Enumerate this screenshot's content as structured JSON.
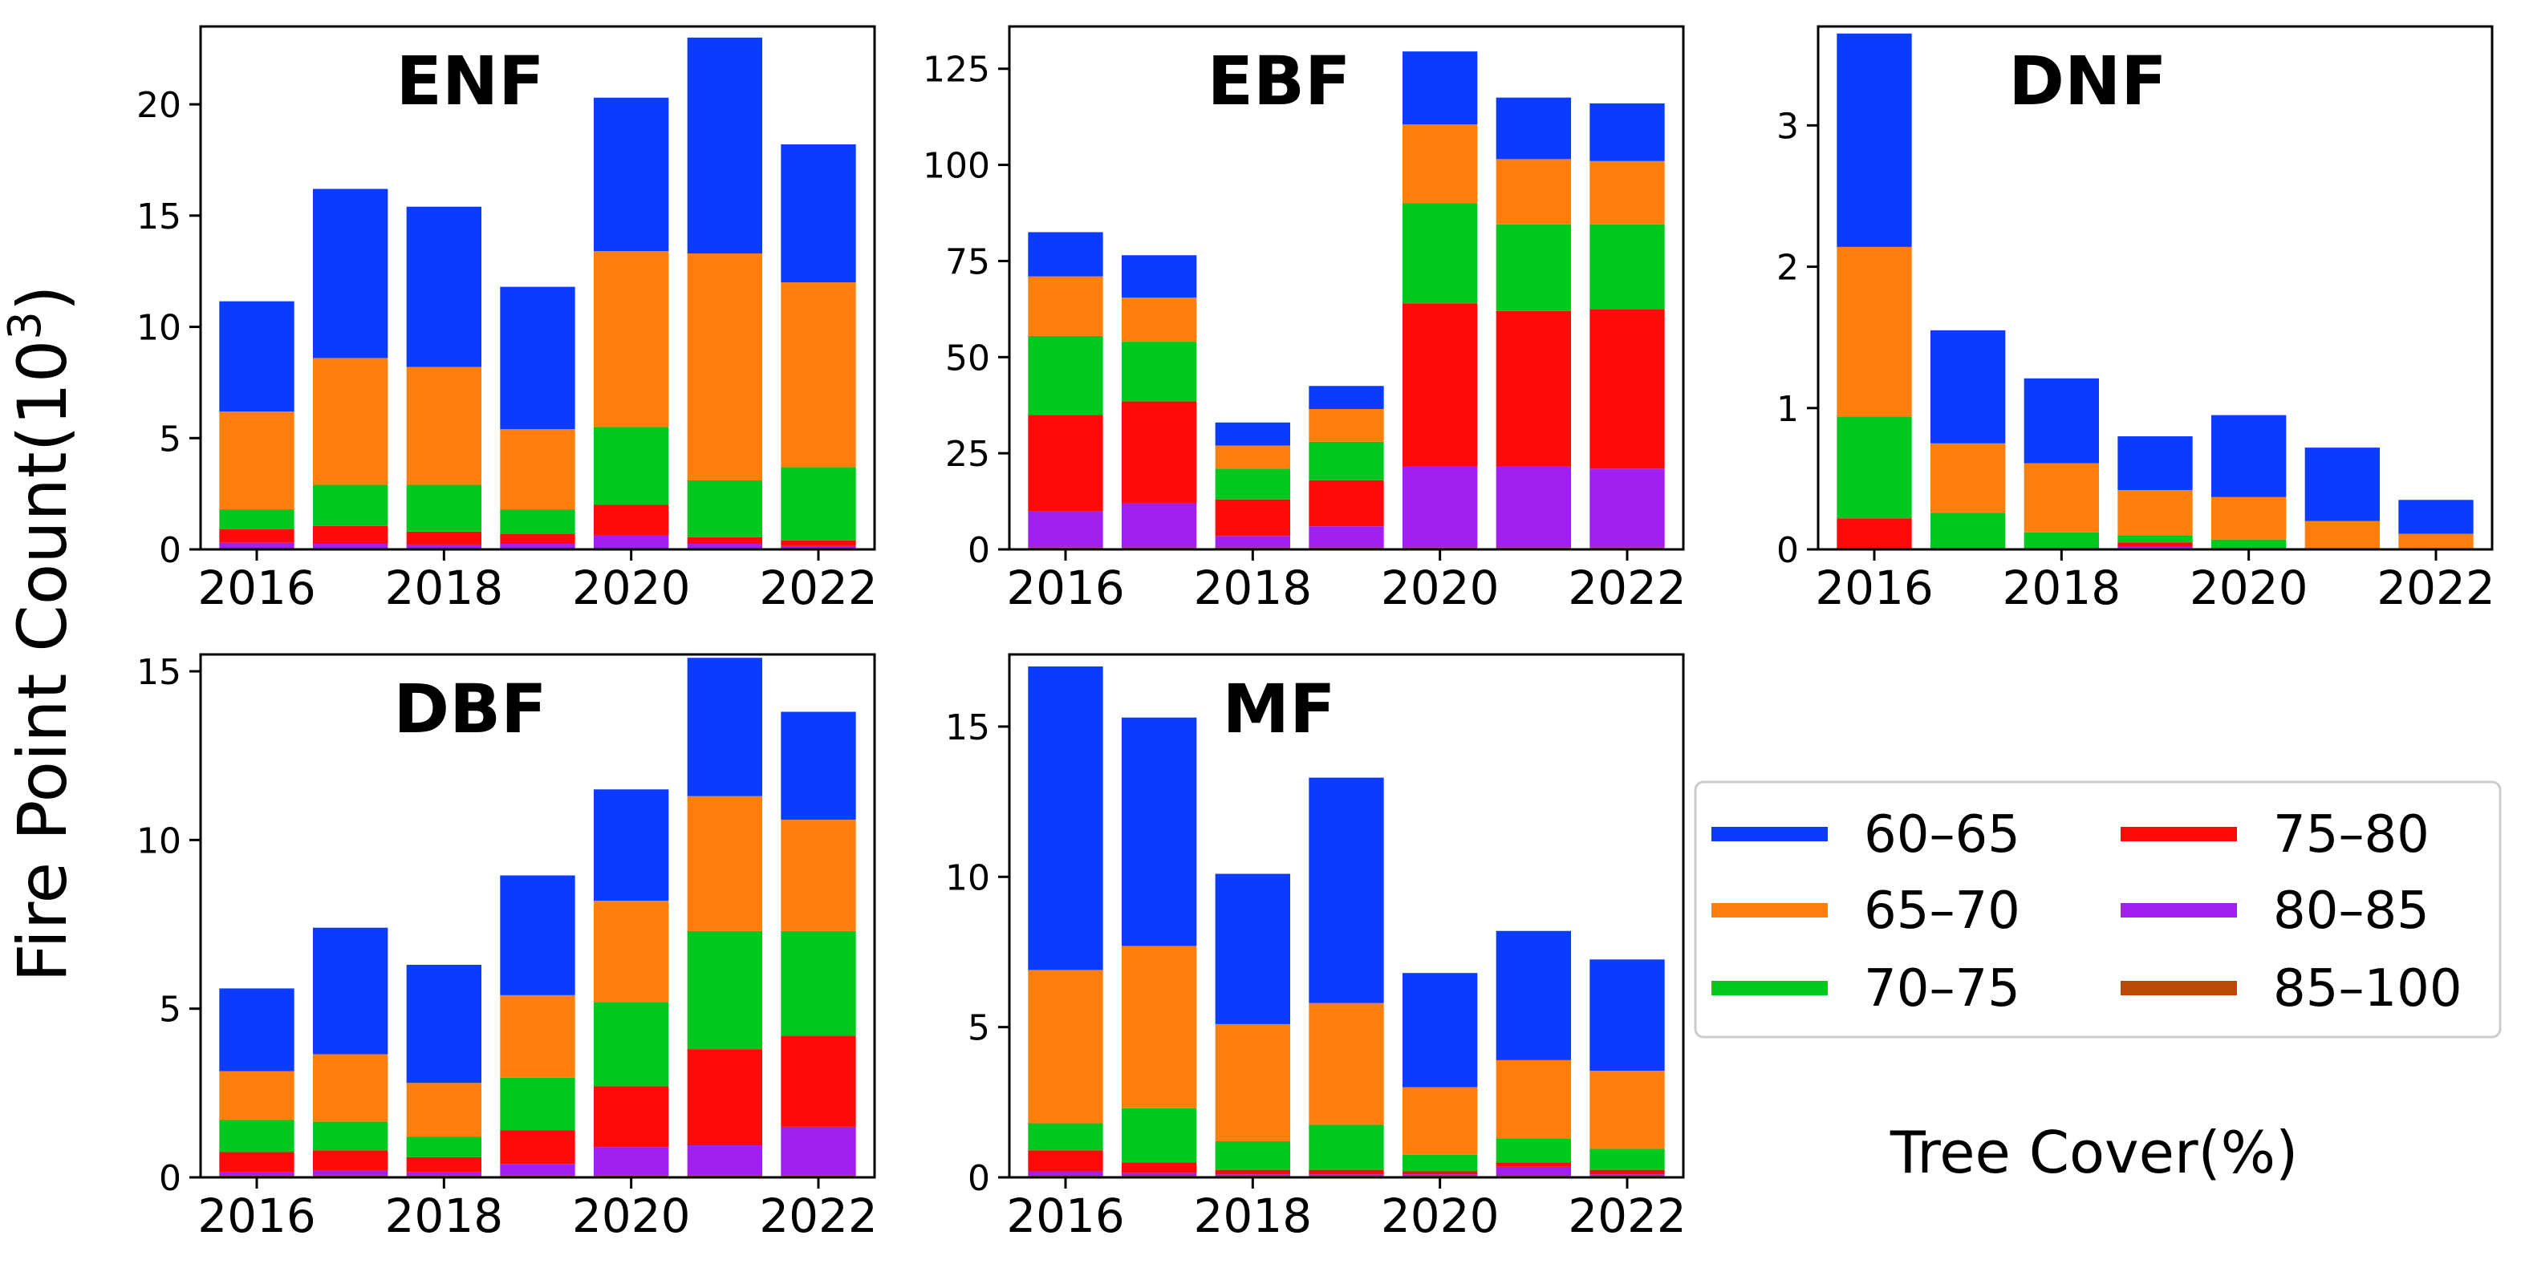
{
  "figure": {
    "ylabel_main": "Fire Point Count(10",
    "ylabel_exp": "3",
    "ylabel_close": ")",
    "legend_title": "Tree Cover(%)"
  },
  "legend": [
    {
      "label": "60–65",
      "color": "#0a3bff"
    },
    {
      "label": "65–70",
      "color": "#ff7f0e"
    },
    {
      "label": "70–75",
      "color": "#00c81e"
    },
    {
      "label": "75–80",
      "color": "#ff0a0a"
    },
    {
      "label": "80–85",
      "color": "#a020f0"
    },
    {
      "label": "85–100",
      "color": "#b84a06"
    }
  ],
  "chart_data": [
    {
      "type": "bar",
      "stacked": true,
      "title": "ENF",
      "categories": [
        "2016",
        "2017",
        "2018",
        "2019",
        "2020",
        "2021",
        "2022"
      ],
      "xticks": [
        "2016",
        "2018",
        "2020",
        "2022"
      ],
      "ylim": [
        0,
        23.5
      ],
      "yticks": [
        0,
        5,
        10,
        15,
        20
      ],
      "series": [
        {
          "name": "85–100",
          "values": [
            0.05,
            0.05,
            0.05,
            0.05,
            0.05,
            0.05,
            0.05
          ]
        },
        {
          "name": "80–85",
          "values": [
            0.25,
            0.2,
            0.15,
            0.2,
            0.6,
            0.2,
            0.1
          ]
        },
        {
          "name": "75–80",
          "values": [
            0.6,
            0.8,
            0.6,
            0.45,
            1.35,
            0.3,
            0.25
          ]
        },
        {
          "name": "70–75",
          "values": [
            0.9,
            1.85,
            2.1,
            1.1,
            3.5,
            2.55,
            3.3
          ]
        },
        {
          "name": "65–70",
          "values": [
            4.4,
            5.7,
            5.3,
            3.6,
            7.9,
            10.2,
            8.3
          ]
        },
        {
          "name": "60–65",
          "values": [
            4.95,
            7.6,
            7.2,
            6.4,
            6.9,
            9.7,
            6.2
          ]
        }
      ]
    },
    {
      "type": "bar",
      "stacked": true,
      "title": "EBF",
      "categories": [
        "2016",
        "2017",
        "2018",
        "2019",
        "2020",
        "2021",
        "2022"
      ],
      "xticks": [
        "2016",
        "2018",
        "2020",
        "2022"
      ],
      "ylim": [
        0,
        136
      ],
      "yticks": [
        0,
        25,
        50,
        75,
        100,
        125
      ],
      "series": [
        {
          "name": "85–100",
          "values": [
            0.5,
            0.5,
            0.5,
            0.5,
            0.5,
            0.5,
            0.5
          ]
        },
        {
          "name": "80–85",
          "values": [
            9.5,
            11.5,
            3,
            5.5,
            21,
            21,
            20.5
          ]
        },
        {
          "name": "75–80",
          "values": [
            25,
            26.5,
            9.5,
            12,
            42.5,
            40.5,
            41.5
          ]
        },
        {
          "name": "70–75",
          "values": [
            20.5,
            15.5,
            8,
            10,
            26,
            22.5,
            22
          ]
        },
        {
          "name": "65–70",
          "values": [
            15.5,
            11.5,
            6,
            8.5,
            20.5,
            17,
            16.5
          ]
        },
        {
          "name": "60–65",
          "values": [
            11.5,
            11,
            6,
            6,
            19,
            16,
            15
          ]
        }
      ]
    },
    {
      "type": "bar",
      "stacked": true,
      "title": "DNF",
      "categories": [
        "2016",
        "2017",
        "2018",
        "2019",
        "2020",
        "2021",
        "2022"
      ],
      "xticks": [
        "2016",
        "2018",
        "2020",
        "2022"
      ],
      "ylim": [
        0,
        3.7
      ],
      "yticks": [
        0,
        1,
        2,
        3
      ],
      "series": [
        {
          "name": "85–100",
          "values": [
            0,
            0,
            0,
            0.01,
            0,
            0,
            0
          ]
        },
        {
          "name": "80–85",
          "values": [
            0,
            0,
            0,
            0.01,
            0,
            0,
            0
          ]
        },
        {
          "name": "75–80",
          "values": [
            0.22,
            0,
            0,
            0.03,
            0,
            0,
            0
          ]
        },
        {
          "name": "70–75",
          "values": [
            0.72,
            0.26,
            0.12,
            0.05,
            0.07,
            0,
            0
          ]
        },
        {
          "name": "65–70",
          "values": [
            1.2,
            0.49,
            0.49,
            0.32,
            0.3,
            0.2,
            0.11
          ]
        },
        {
          "name": "60–65",
          "values": [
            1.51,
            0.8,
            0.6,
            0.38,
            0.58,
            0.52,
            0.24
          ]
        }
      ]
    },
    {
      "type": "bar",
      "stacked": true,
      "title": "DBF",
      "categories": [
        "2016",
        "2017",
        "2018",
        "2019",
        "2020",
        "2021",
        "2022"
      ],
      "xticks": [
        "2016",
        "2018",
        "2020",
        "2022"
      ],
      "ylim": [
        0,
        15.5
      ],
      "yticks": [
        0,
        5,
        10,
        15
      ],
      "series": [
        {
          "name": "85–100",
          "values": [
            0.05,
            0.05,
            0.05,
            0.05,
            0.05,
            0.05,
            0.05
          ]
        },
        {
          "name": "80–85",
          "values": [
            0.1,
            0.15,
            0.1,
            0.35,
            0.85,
            0.9,
            1.45
          ]
        },
        {
          "name": "75–80",
          "values": [
            0.6,
            0.6,
            0.45,
            1.0,
            1.8,
            2.85,
            2.7
          ]
        },
        {
          "name": "70–75",
          "values": [
            0.95,
            0.85,
            0.6,
            1.55,
            2.5,
            3.5,
            3.1
          ]
        },
        {
          "name": "65–70",
          "values": [
            1.45,
            2.0,
            1.6,
            2.45,
            3.0,
            4.0,
            3.3
          ]
        },
        {
          "name": "60–65",
          "values": [
            2.45,
            3.75,
            3.5,
            3.55,
            3.3,
            4.1,
            3.2
          ]
        }
      ]
    },
    {
      "type": "bar",
      "stacked": true,
      "title": "MF",
      "categories": [
        "2016",
        "2017",
        "2018",
        "2019",
        "2020",
        "2021",
        "2022"
      ],
      "xticks": [
        "2016",
        "2018",
        "2020",
        "2022"
      ],
      "ylim": [
        0,
        17.4
      ],
      "yticks": [
        0,
        5,
        10,
        15
      ],
      "series": [
        {
          "name": "85–100",
          "values": [
            0.05,
            0.05,
            0.05,
            0.05,
            0.05,
            0.05,
            0.05
          ]
        },
        {
          "name": "80–85",
          "values": [
            0.15,
            0.1,
            0.05,
            0.05,
            0.05,
            0.3,
            0.05
          ]
        },
        {
          "name": "75–80",
          "values": [
            0.7,
            0.35,
            0.15,
            0.15,
            0.1,
            0.15,
            0.15
          ]
        },
        {
          "name": "70–75",
          "values": [
            0.9,
            1.8,
            0.95,
            1.5,
            0.55,
            0.8,
            0.7
          ]
        },
        {
          "name": "65–70",
          "values": [
            5.1,
            5.4,
            3.9,
            4.05,
            2.25,
            2.6,
            2.6
          ]
        },
        {
          "name": "60–65",
          "values": [
            10.1,
            7.6,
            5.0,
            7.5,
            3.8,
            4.3,
            3.7
          ]
        }
      ]
    }
  ]
}
